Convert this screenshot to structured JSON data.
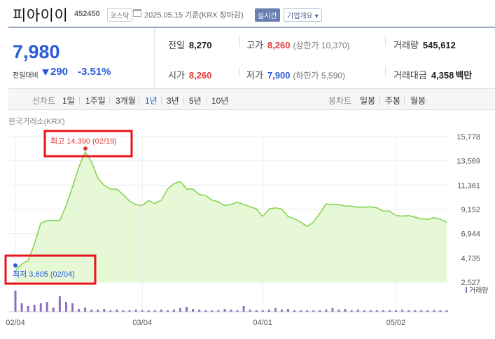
{
  "header": {
    "stock_name": "피아이이",
    "stock_code": "452450",
    "market": "코스닥",
    "date_text": "2025.05.15 기준(KRX 장마감)",
    "realtime": "실시간",
    "overview": "기업개요"
  },
  "quote": {
    "price": "7,980",
    "change_label": "전일대비",
    "change_value": "290",
    "change_pct": "-3.51%",
    "prev_close": {
      "label": "전일",
      "value": "8,270"
    },
    "high": {
      "label": "고가",
      "value": "8,260",
      "sub": "(상한가 10,370)"
    },
    "volume": {
      "label": "거래량",
      "value": "545,612"
    },
    "open": {
      "label": "시가",
      "value": "8,260"
    },
    "low": {
      "label": "저가",
      "value": "7,900",
      "sub": "(하한가 5,590)"
    },
    "amount": {
      "label": "거래대금",
      "value": "4,358",
      "unit": "백만"
    }
  },
  "tabs": {
    "line_label": "선차트",
    "periods": [
      "1일",
      "1주일",
      "3개월",
      "1년",
      "3년",
      "5년",
      "10년"
    ],
    "active_period": "1년",
    "candle_label": "봉차트",
    "candles": [
      "일봉",
      "주봉",
      "월봉"
    ]
  },
  "colors": {
    "price_down": "#2a5bd6",
    "price_up": "#e03b3b",
    "line": "#7fd14a",
    "area": "#e6f8d6",
    "volume": "#8b72c0",
    "highlight_box": "#e8141c"
  },
  "chart_data": {
    "type": "area",
    "source_label": "한국거래소(KRX)",
    "y_ticks": [
      "15,778",
      "13,569",
      "11,361",
      "9,152",
      "6,944",
      "4,735",
      "2,527"
    ],
    "ylim": [
      2527,
      15778
    ],
    "x_ticks": [
      {
        "label": "02/04",
        "index": 0
      },
      {
        "label": "03/04",
        "index": 20
      },
      {
        "label": "04/01",
        "index": 39
      },
      {
        "label": "05/02",
        "index": 60
      }
    ],
    "high_annotation": "최고 14,390 (02/19)",
    "low_annotation": "최저 3,605 (02/04)",
    "high_index": 11,
    "low_index": 0,
    "volume_legend": "거래량",
    "values": [
      3605,
      4200,
      4500,
      6000,
      7900,
      8150,
      8150,
      8150,
      9500,
      11200,
      13000,
      14390,
      13500,
      12000,
      11350,
      11000,
      11000,
      10500,
      9900,
      9600,
      9500,
      9950,
      9700,
      10000,
      11000,
      11500,
      11700,
      11000,
      11000,
      10500,
      10400,
      10000,
      9850,
      9500,
      9600,
      9800,
      9600,
      9400,
      9200,
      8500,
      9200,
      9300,
      9200,
      8500,
      8300,
      8000,
      7600,
      8000,
      8800,
      9650,
      9600,
      9600,
      9450,
      9450,
      9350,
      9350,
      9400,
      9300,
      9000,
      9000,
      8600,
      8550,
      8600,
      8450,
      8300,
      8250,
      8400,
      8270,
      7980
    ],
    "volume": [
      30,
      12,
      8,
      10,
      12,
      14,
      6,
      22,
      14,
      12,
      4,
      6,
      3,
      3,
      4,
      2,
      3,
      2,
      2,
      3,
      2,
      2,
      2,
      3,
      2,
      3,
      5,
      7,
      4,
      3,
      2,
      2,
      2,
      4,
      3,
      2,
      8,
      3,
      2,
      2,
      3,
      5,
      3,
      4,
      2,
      2,
      2,
      2,
      2,
      3,
      5,
      3,
      4,
      2,
      3,
      2,
      2,
      2,
      2,
      2,
      2,
      3,
      2,
      2,
      2,
      2,
      2,
      2,
      2
    ],
    "volume_max": 32
  }
}
